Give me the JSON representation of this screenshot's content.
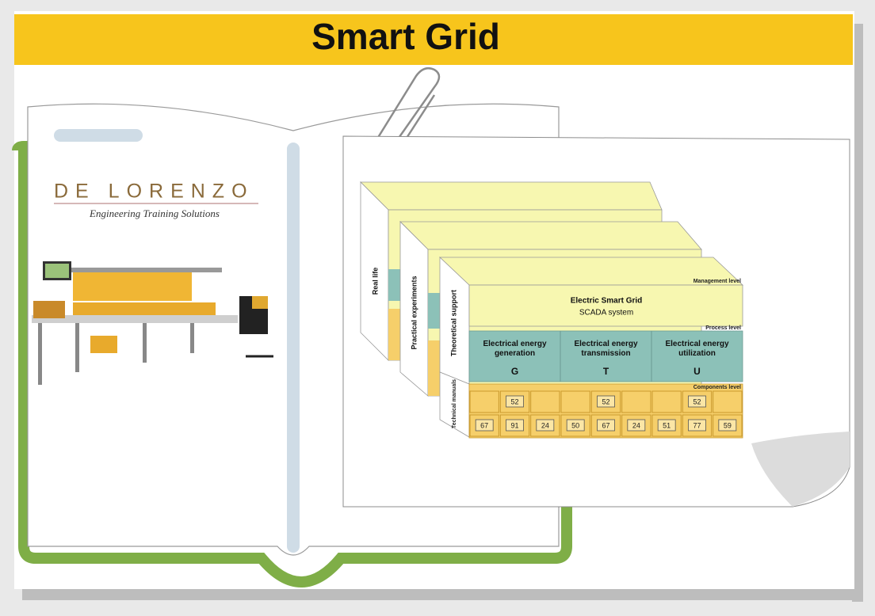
{
  "header": {
    "title": "Smart Grid"
  },
  "logo": {
    "name": "DE LORENZO",
    "tagline": "Engineering Training Solutions"
  },
  "diagram": {
    "layers": [
      "Real life",
      "Practical experiments",
      "Theoretical support",
      "Technical manuals"
    ],
    "levels": {
      "management": "Management level",
      "process": "Process level",
      "components": "Components level"
    },
    "management": {
      "title": "Electric Smart Grid",
      "subtitle": "SCADA system"
    },
    "process": [
      {
        "label": "Electrical energy generation",
        "letter": "G"
      },
      {
        "label": "Electrical energy transmission",
        "letter": "T"
      },
      {
        "label": "Electrical energy utilization",
        "letter": "U"
      }
    ],
    "components_top": [
      "52",
      "52",
      "52"
    ],
    "components_bottom": [
      "67",
      "91",
      "24",
      "50",
      "67",
      "24",
      "51",
      "77",
      "59"
    ]
  }
}
